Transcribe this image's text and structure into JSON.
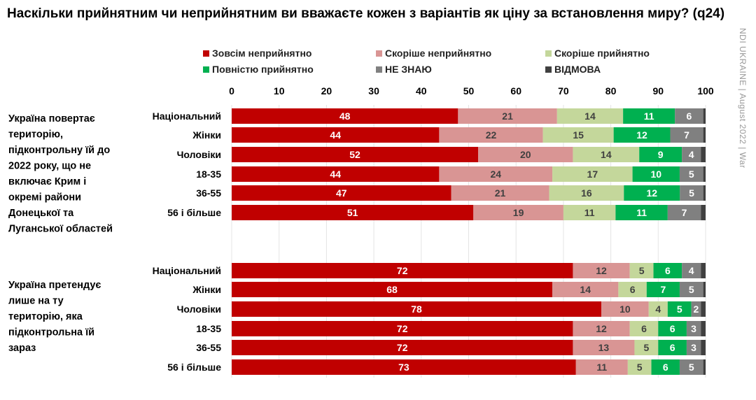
{
  "title": "Наскільки прийнятним чи неприйнятним ви вважаєте кожен з варіантів як ціну за встановлення миру? (q24)",
  "side_note": "NDI UKRAINE | August 2022 | War",
  "chart_data": {
    "type": "stacked-bar-horizontal",
    "xlim": [
      0,
      100
    ],
    "ticks": [
      "0",
      "10",
      "20",
      "30",
      "40",
      "50",
      "60",
      "70",
      "80",
      "90",
      "100"
    ],
    "grid": true,
    "legend_position": "top",
    "series": [
      {
        "name": "Зовсім неприйнятно",
        "color": "#c00000",
        "text": "#ffffff"
      },
      {
        "name": "Скоріше неприйнятно",
        "color": "#d99594",
        "text": "#404040"
      },
      {
        "name": "Скоріше прийнятно",
        "color": "#c4d79b",
        "text": "#404040"
      },
      {
        "name": "Повністю прийнятно",
        "color": "#00b050",
        "text": "#ffffff"
      },
      {
        "name": "НЕ ЗНАЮ",
        "color": "#808080",
        "text": "#ffffff"
      },
      {
        "name": "ВІДМОВА",
        "color": "#404040",
        "text": "#ffffff"
      }
    ],
    "groups": [
      {
        "label": "Україна повертає територію, підконтрольну їй до 2022 року, що не включає Крим і окремі райони Донецької та Луганської областей",
        "rows": [
          {
            "category": "Національний",
            "values": [
              48,
              21,
              14,
              11,
              6
            ]
          },
          {
            "category": "Жінки",
            "values": [
              44,
              22,
              15,
              12,
              7
            ]
          },
          {
            "category": "Чоловіки",
            "values": [
              52,
              20,
              14,
              9,
              4
            ]
          },
          {
            "category": "18-35",
            "values": [
              44,
              24,
              17,
              10,
              5
            ]
          },
          {
            "category": "36-55",
            "values": [
              47,
              21,
              16,
              12,
              5
            ]
          },
          {
            "category": "56 і більше",
            "values": [
              51,
              19,
              11,
              11,
              7
            ]
          }
        ]
      },
      {
        "label": "Україна претендує лише на ту територію, яка підконтрольна їй зараз",
        "rows": [
          {
            "category": "Національний",
            "values": [
              72,
              12,
              5,
              6,
              4
            ]
          },
          {
            "category": "Жінки",
            "values": [
              68,
              14,
              6,
              7,
              5
            ]
          },
          {
            "category": "Чоловіки",
            "values": [
              78,
              10,
              4,
              5,
              2
            ]
          },
          {
            "category": "18-35",
            "values": [
              72,
              12,
              6,
              6,
              3
            ]
          },
          {
            "category": "36-55",
            "values": [
              72,
              13,
              5,
              6,
              3
            ]
          },
          {
            "category": "56 і більше",
            "values": [
              73,
              11,
              5,
              6,
              5
            ]
          }
        ]
      }
    ]
  }
}
